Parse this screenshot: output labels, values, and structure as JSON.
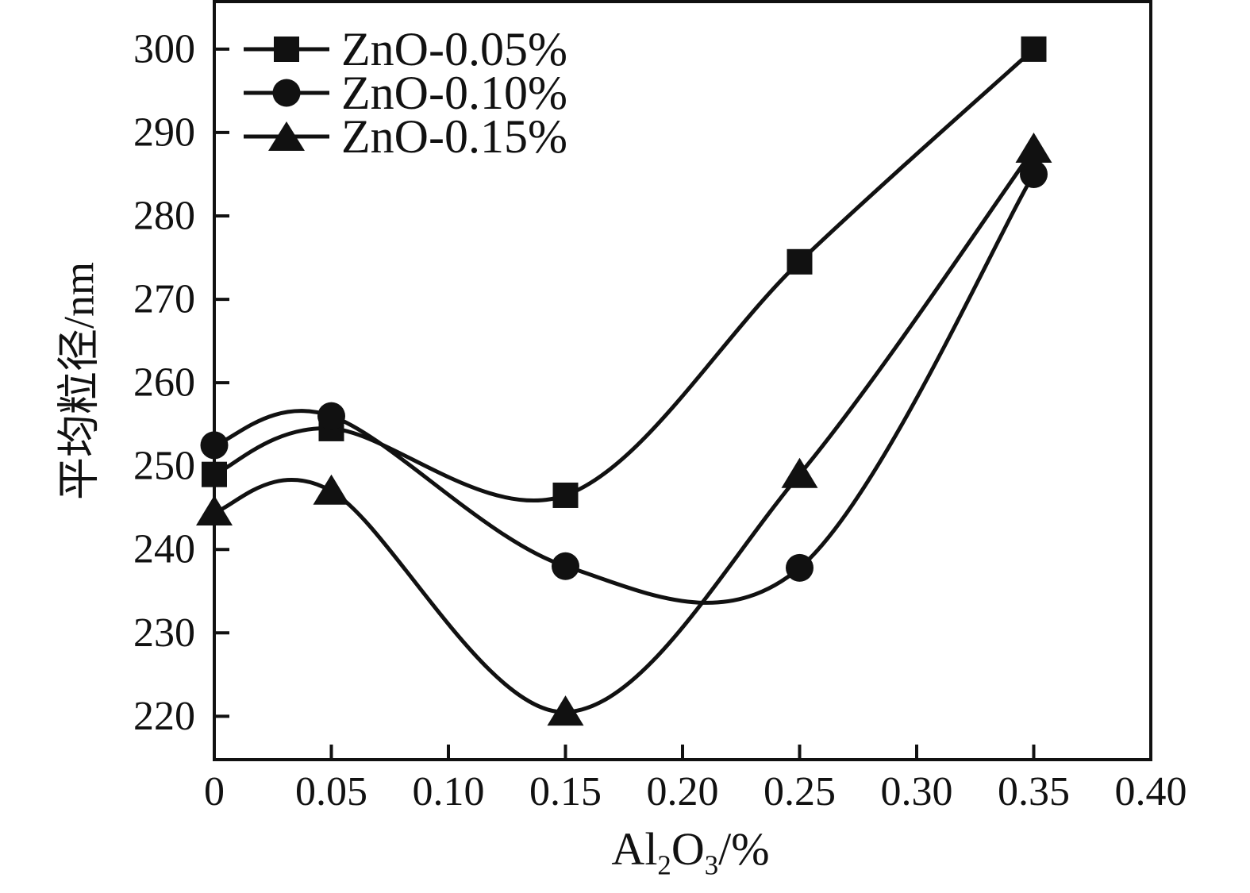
{
  "chart_data": {
    "type": "line",
    "title": "",
    "x": [
      0,
      0.05,
      0.15,
      0.25,
      0.35
    ],
    "series": [
      {
        "name": "ZnO-0.05%",
        "marker": "square",
        "values": [
          249.0,
          254.5,
          246.5,
          274.5,
          300.0
        ]
      },
      {
        "name": "ZnO-0.10%",
        "marker": "circle",
        "values": [
          252.5,
          256.0,
          238.0,
          237.8,
          285.0
        ]
      },
      {
        "name": "ZnO-0.15%",
        "marker": "triangle",
        "values": [
          244.5,
          247.0,
          220.5,
          249.0,
          288.0
        ]
      }
    ],
    "xlabel": "Al2O3/%",
    "xlabel_parts": [
      {
        "text": "Al",
        "sub": false
      },
      {
        "text": "2",
        "sub": true
      },
      {
        "text": "O",
        "sub": false
      },
      {
        "text": "3",
        "sub": true
      },
      {
        "text": "/%",
        "sub": false
      }
    ],
    "ylabel": "平均粒径/nm",
    "xlim": [
      0,
      0.4
    ],
    "ylim": [
      214.8,
      305.7
    ],
    "x_ticks": {
      "values": [
        0,
        0.05,
        0.1,
        0.15,
        0.2,
        0.25,
        0.3,
        0.35,
        0.4
      ],
      "labels": [
        "0",
        "0.05",
        "0.10",
        "0.15",
        "0.20",
        "0.25",
        "0.30",
        "0.35",
        "0.40"
      ]
    },
    "y_ticks": {
      "values": [
        220,
        230,
        240,
        250,
        260,
        270,
        280,
        290,
        300
      ],
      "labels": [
        "220",
        "230",
        "240",
        "250",
        "260",
        "270",
        "280",
        "290",
        "300"
      ]
    },
    "grid": false,
    "legend_position": "upper-left",
    "curve_style": "smooth-spline",
    "line_color": "#111111",
    "background": "#ffffff"
  }
}
